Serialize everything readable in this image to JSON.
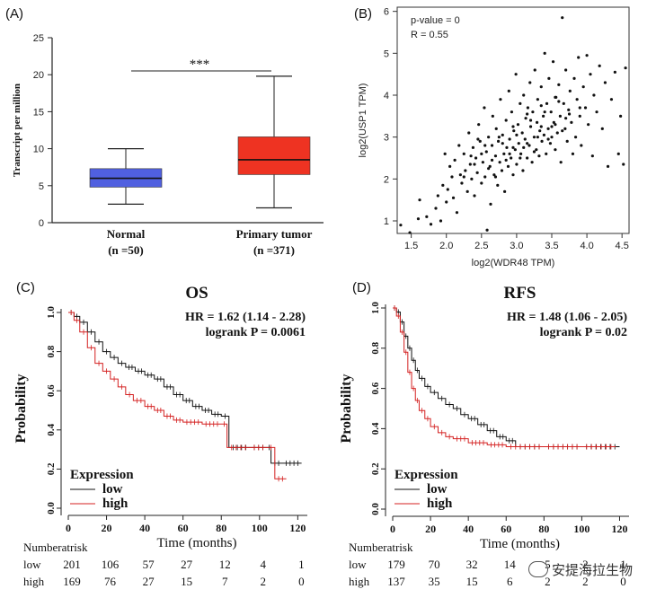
{
  "panels": {
    "a": "(A)",
    "b": "(B)",
    "c": "(C)",
    "d": "(D)"
  },
  "chart_data": [
    {
      "id": "A",
      "type": "box",
      "ylabel": "Transcript per million",
      "ylim": [
        0,
        25
      ],
      "yticks": [
        0,
        5,
        10,
        15,
        20,
        25
      ],
      "significance": "***",
      "groups": [
        {
          "name": "Normal",
          "n_label": "(n =50)",
          "color": "#5060e0",
          "min": 2.5,
          "q1": 4.8,
          "median": 6.0,
          "q3": 7.3,
          "max": 10.0
        },
        {
          "name": "Primary tumor",
          "n_label": "(n =371)",
          "color": "#ee3322",
          "min": 2.0,
          "q1": 6.5,
          "median": 8.5,
          "q3": 11.6,
          "max": 19.8
        }
      ]
    },
    {
      "id": "B",
      "type": "scatter",
      "xlabel": "log2(WDR48 TPM)",
      "ylabel": "log2(USP1 TPM)",
      "xlim": [
        1.3,
        4.6
      ],
      "ylim": [
        0.7,
        6.1
      ],
      "xticks": [
        1.5,
        2.0,
        2.5,
        3.0,
        3.5,
        4.0,
        4.5
      ],
      "yticks": [
        1,
        2,
        3,
        4,
        5,
        6
      ],
      "annotation_lines": [
        "p-value = 0",
        "R = 0.55"
      ],
      "points_note": "approx. 371 points, positive correlation",
      "points": [
        [
          1.35,
          0.9
        ],
        [
          1.48,
          0.72
        ],
        [
          1.6,
          1.05
        ],
        [
          1.62,
          1.5
        ],
        [
          1.72,
          1.1
        ],
        [
          1.78,
          0.92
        ],
        [
          1.85,
          1.3
        ],
        [
          1.88,
          1.6
        ],
        [
          1.92,
          1.0
        ],
        [
          1.95,
          1.85
        ],
        [
          1.98,
          2.6
        ],
        [
          2.0,
          1.45
        ],
        [
          2.02,
          1.75
        ],
        [
          2.05,
          2.3
        ],
        [
          2.08,
          2.05
        ],
        [
          2.1,
          1.55
        ],
        [
          2.12,
          2.45
        ],
        [
          2.15,
          1.2
        ],
        [
          2.18,
          2.8
        ],
        [
          2.2,
          2.1
        ],
        [
          2.22,
          1.9
        ],
        [
          2.25,
          2.6
        ],
        [
          2.27,
          2.2
        ],
        [
          2.3,
          1.7
        ],
        [
          2.32,
          3.1
        ],
        [
          2.34,
          2.35
        ],
        [
          2.36,
          2.0
        ],
        [
          2.38,
          2.75
        ],
        [
          2.4,
          1.6
        ],
        [
          2.42,
          2.5
        ],
        [
          2.44,
          2.15
        ],
        [
          2.46,
          3.3
        ],
        [
          2.48,
          2.9
        ],
        [
          2.5,
          1.9
        ],
        [
          2.52,
          2.4
        ],
        [
          2.54,
          3.7
        ],
        [
          2.55,
          2.05
        ],
        [
          2.57,
          2.65
        ],
        [
          2.58,
          0.78
        ],
        [
          2.6,
          3.0
        ],
        [
          2.62,
          2.3
        ],
        [
          2.63,
          1.4
        ],
        [
          2.65,
          2.8
        ],
        [
          2.66,
          3.5
        ],
        [
          2.68,
          2.1
        ],
        [
          2.7,
          2.55
        ],
        [
          2.71,
          3.2
        ],
        [
          2.73,
          1.85
        ],
        [
          2.74,
          2.9
        ],
        [
          2.76,
          2.4
        ],
        [
          2.77,
          3.9
        ],
        [
          2.79,
          2.2
        ],
        [
          2.8,
          3.05
        ],
        [
          2.82,
          2.6
        ],
        [
          2.83,
          1.7
        ],
        [
          2.85,
          3.4
        ],
        [
          2.86,
          2.75
        ],
        [
          2.88,
          2.3
        ],
        [
          2.89,
          4.1
        ],
        [
          2.9,
          2.95
        ],
        [
          2.92,
          2.5
        ],
        [
          2.93,
          3.6
        ],
        [
          2.95,
          2.1
        ],
        [
          2.96,
          3.15
        ],
        [
          2.98,
          2.7
        ],
        [
          2.99,
          4.5
        ],
        [
          3.0,
          2.35
        ],
        [
          3.02,
          3.3
        ],
        [
          3.03,
          2.85
        ],
        [
          3.05,
          3.8
        ],
        [
          3.06,
          2.6
        ],
        [
          3.08,
          3.1
        ],
        [
          3.09,
          2.2
        ],
        [
          3.1,
          4.0
        ],
        [
          3.12,
          2.95
        ],
        [
          3.13,
          3.45
        ],
        [
          3.15,
          2.5
        ],
        [
          3.16,
          3.7
        ],
        [
          3.18,
          2.8
        ],
        [
          3.19,
          4.3
        ],
        [
          3.2,
          3.25
        ],
        [
          3.22,
          2.4
        ],
        [
          3.23,
          3.6
        ],
        [
          3.25,
          3.0
        ],
        [
          3.26,
          4.6
        ],
        [
          3.28,
          2.7
        ],
        [
          3.29,
          3.35
        ],
        [
          3.3,
          3.9
        ],
        [
          3.32,
          2.55
        ],
        [
          3.33,
          3.15
        ],
        [
          3.35,
          4.2
        ],
        [
          3.36,
          2.9
        ],
        [
          3.38,
          3.5
        ],
        [
          3.39,
          3.05
        ],
        [
          3.4,
          5.0
        ],
        [
          3.42,
          2.6
        ],
        [
          3.43,
          3.8
        ],
        [
          3.45,
          3.2
        ],
        [
          3.46,
          4.4
        ],
        [
          3.48,
          2.85
        ],
        [
          3.49,
          3.6
        ],
        [
          3.5,
          3.0
        ],
        [
          3.52,
          4.8
        ],
        [
          3.53,
          3.35
        ],
        [
          3.55,
          2.7
        ],
        [
          3.56,
          3.95
        ],
        [
          3.58,
          3.1
        ],
        [
          3.6,
          4.25
        ],
        [
          3.62,
          3.5
        ],
        [
          3.63,
          2.4
        ],
        [
          3.65,
          5.85
        ],
        [
          3.67,
          3.8
        ],
        [
          3.69,
          3.2
        ],
        [
          3.7,
          4.6
        ],
        [
          3.72,
          2.9
        ],
        [
          3.74,
          3.65
        ],
        [
          3.76,
          4.1
        ],
        [
          3.78,
          3.35
        ],
        [
          3.8,
          2.6
        ],
        [
          3.82,
          4.4
        ],
        [
          3.84,
          3.0
        ],
        [
          3.86,
          3.9
        ],
        [
          3.88,
          4.9
        ],
        [
          3.9,
          3.5
        ],
        [
          3.92,
          2.8
        ],
        [
          3.95,
          4.2
        ],
        [
          3.98,
          3.7
        ],
        [
          4.0,
          4.95
        ],
        [
          4.02,
          3.3
        ],
        [
          4.05,
          4.5
        ],
        [
          4.08,
          2.55
        ],
        [
          4.1,
          4.0
        ],
        [
          4.14,
          3.6
        ],
        [
          4.18,
          4.7
        ],
        [
          4.22,
          3.2
        ],
        [
          4.26,
          4.3
        ],
        [
          4.3,
          2.3
        ],
        [
          4.35,
          3.9
        ],
        [
          4.4,
          4.55
        ],
        [
          4.45,
          2.6
        ],
        [
          4.48,
          3.5
        ],
        [
          4.52,
          2.35
        ],
        [
          4.55,
          4.65
        ],
        [
          2.45,
          2.95
        ],
        [
          2.6,
          2.25
        ],
        [
          2.7,
          2.05
        ],
        [
          2.85,
          2.45
        ],
        [
          2.95,
          2.75
        ],
        [
          3.05,
          2.5
        ],
        [
          3.15,
          2.85
        ],
        [
          3.25,
          2.65
        ],
        [
          3.35,
          3.25
        ],
        [
          3.45,
          2.95
        ],
        [
          3.55,
          3.3
        ],
        [
          3.65,
          3.15
        ],
        [
          3.75,
          3.55
        ],
        [
          2.35,
          2.55
        ],
        [
          2.55,
          2.8
        ],
        [
          2.75,
          3.0
        ],
        [
          2.95,
          3.25
        ],
        [
          3.15,
          3.55
        ],
        [
          3.35,
          3.75
        ],
        [
          3.55,
          3.95
        ],
        [
          2.25,
          2.05
        ],
        [
          2.4,
          2.35
        ],
        [
          2.65,
          2.45
        ],
        [
          2.9,
          2.6
        ],
        [
          3.1,
          2.75
        ],
        [
          3.3,
          3.0
        ],
        [
          3.5,
          3.25
        ],
        [
          3.7,
          3.45
        ],
        [
          3.9,
          3.7
        ],
        [
          2.5,
          2.6
        ],
        [
          2.8,
          2.85
        ],
        [
          3.0,
          3.05
        ],
        [
          3.2,
          3.4
        ],
        [
          3.4,
          3.6
        ],
        [
          3.6,
          3.85
        ]
      ]
    },
    {
      "id": "C",
      "type": "line",
      "title": "OS",
      "hr_text": "HR = 1.62 (1.14 - 2.28)",
      "logrank_text": "logrank P = 0.0061",
      "ylabel": "Probability",
      "xlabel": "Time (months)",
      "xlim": [
        0,
        125
      ],
      "ylim": [
        0,
        1.0
      ],
      "xticks": [
        0,
        20,
        40,
        60,
        80,
        100,
        120
      ],
      "yticks": [
        "0.0",
        "0.2",
        "0.4",
        "0.6",
        "0.8",
        "1.0"
      ],
      "legend_title": "Expression",
      "series": [
        {
          "name": "low",
          "color": "#111111",
          "points": [
            [
              0,
              1.0
            ],
            [
              3,
              0.98
            ],
            [
              6,
              0.95
            ],
            [
              10,
              0.9
            ],
            [
              14,
              0.85
            ],
            [
              18,
              0.8
            ],
            [
              22,
              0.77
            ],
            [
              26,
              0.74
            ],
            [
              30,
              0.72
            ],
            [
              35,
              0.7
            ],
            [
              40,
              0.68
            ],
            [
              45,
              0.66
            ],
            [
              50,
              0.62
            ],
            [
              55,
              0.58
            ],
            [
              60,
              0.55
            ],
            [
              65,
              0.52
            ],
            [
              70,
              0.5
            ],
            [
              75,
              0.48
            ],
            [
              80,
              0.47
            ],
            [
              84,
              0.31
            ],
            [
              95,
              0.31
            ],
            [
              104,
              0.31
            ],
            [
              106,
              0.23
            ],
            [
              112,
              0.23
            ],
            [
              122,
              0.23
            ]
          ]
        },
        {
          "name": "high",
          "color": "#d42020",
          "points": [
            [
              0,
              1.0
            ],
            [
              3,
              0.96
            ],
            [
              6,
              0.9
            ],
            [
              10,
              0.82
            ],
            [
              14,
              0.74
            ],
            [
              18,
              0.7
            ],
            [
              22,
              0.66
            ],
            [
              26,
              0.62
            ],
            [
              30,
              0.58
            ],
            [
              34,
              0.55
            ],
            [
              40,
              0.52
            ],
            [
              45,
              0.5
            ],
            [
              50,
              0.47
            ],
            [
              55,
              0.45
            ],
            [
              60,
              0.44
            ],
            [
              70,
              0.43
            ],
            [
              80,
              0.43
            ],
            [
              83,
              0.31
            ],
            [
              95,
              0.31
            ],
            [
              104,
              0.31
            ],
            [
              108,
              0.15
            ],
            [
              114,
              0.15
            ]
          ]
        }
      ],
      "risk_header": "Numberatrisk",
      "risk_rows": [
        {
          "label": "low",
          "values": [
            "201",
            "106",
            "57",
            "27",
            "12",
            "4",
            "1"
          ]
        },
        {
          "label": "high",
          "values": [
            "169",
            "76",
            "27",
            "15",
            "7",
            "2",
            "0"
          ]
        }
      ]
    },
    {
      "id": "D",
      "type": "line",
      "title": "RFS",
      "hr_text": "HR = 1.48 (1.06 - 2.05)",
      "logrank_text": "logrank P = 0.02",
      "ylabel": "Probability",
      "xlabel": "Time (months)",
      "xlim": [
        0,
        125
      ],
      "ylim": [
        0,
        1.0
      ],
      "xticks": [
        0,
        20,
        40,
        60,
        80,
        100,
        120
      ],
      "yticks": [
        "0.0",
        "0.2",
        "0.4",
        "0.6",
        "0.8",
        "1.0"
      ],
      "legend_title": "Expression",
      "series": [
        {
          "name": "low",
          "color": "#111111",
          "points": [
            [
              0,
              1.0
            ],
            [
              2,
              0.98
            ],
            [
              4,
              0.93
            ],
            [
              6,
              0.86
            ],
            [
              8,
              0.8
            ],
            [
              10,
              0.74
            ],
            [
              12,
              0.69
            ],
            [
              14,
              0.65
            ],
            [
              17,
              0.61
            ],
            [
              20,
              0.58
            ],
            [
              24,
              0.55
            ],
            [
              28,
              0.52
            ],
            [
              32,
              0.5
            ],
            [
              36,
              0.47
            ],
            [
              40,
              0.45
            ],
            [
              45,
              0.42
            ],
            [
              50,
              0.39
            ],
            [
              55,
              0.36
            ],
            [
              60,
              0.34
            ],
            [
              65,
              0.31
            ],
            [
              80,
              0.31
            ],
            [
              100,
              0.31
            ],
            [
              120,
              0.31
            ]
          ]
        },
        {
          "name": "high",
          "color": "#d42020",
          "points": [
            [
              0,
              1.0
            ],
            [
              2,
              0.96
            ],
            [
              4,
              0.88
            ],
            [
              6,
              0.78
            ],
            [
              8,
              0.68
            ],
            [
              10,
              0.6
            ],
            [
              12,
              0.54
            ],
            [
              14,
              0.49
            ],
            [
              17,
              0.45
            ],
            [
              20,
              0.41
            ],
            [
              24,
              0.38
            ],
            [
              28,
              0.36
            ],
            [
              32,
              0.35
            ],
            [
              40,
              0.33
            ],
            [
              50,
              0.32
            ],
            [
              60,
              0.31
            ],
            [
              80,
              0.31
            ],
            [
              100,
              0.31
            ],
            [
              118,
              0.31
            ]
          ]
        }
      ],
      "risk_header": "Numberatrisk",
      "risk_rows": [
        {
          "label": "low",
          "values": [
            "179",
            "70",
            "32",
            "14",
            "5",
            "2",
            "1"
          ]
        },
        {
          "label": "high",
          "values": [
            "137",
            "35",
            "15",
            "6",
            "2",
            "2",
            "0"
          ]
        }
      ]
    }
  ],
  "watermark": {
    "text": "安提海拉生物",
    "icon": "wechat-icon"
  }
}
